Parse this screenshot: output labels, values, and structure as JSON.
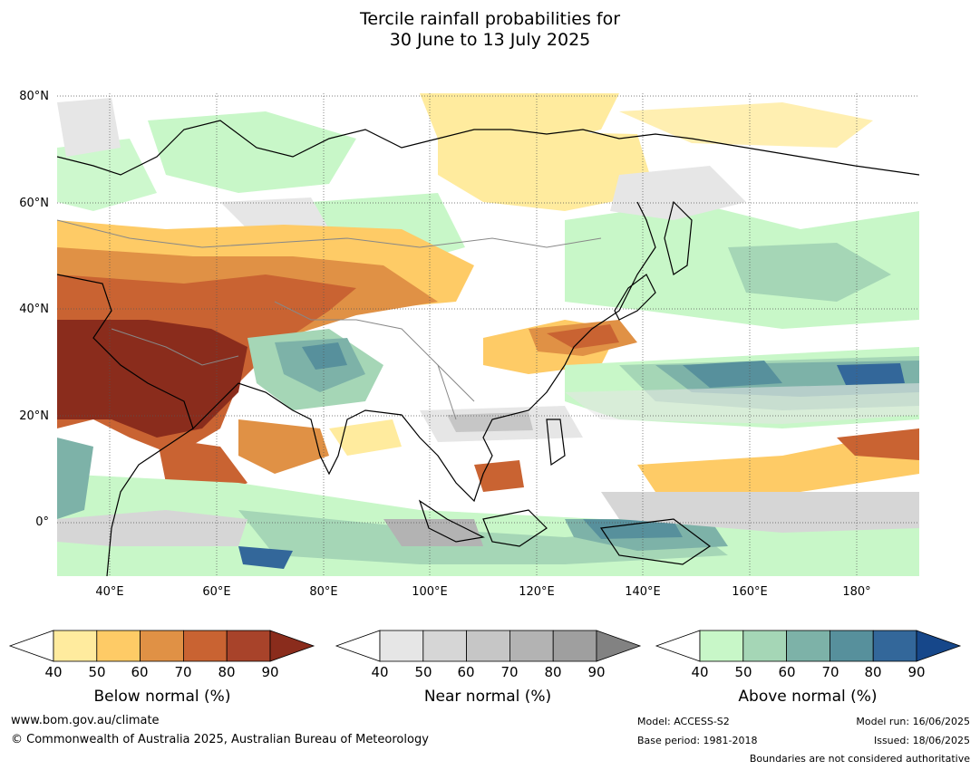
{
  "title_line1": "Tercile rainfall probabilities for",
  "title_line2": "30 June to 13 July 2025",
  "lat_labels": [
    "80°N",
    "60°N",
    "40°N",
    "20°N",
    "0°"
  ],
  "lon_labels": [
    "40°E",
    "60°E",
    "80°E",
    "100°E",
    "120°E",
    "140°E",
    "160°E",
    "180°"
  ],
  "colorbars": [
    {
      "label": "Below normal (%)",
      "ticks": [
        "40",
        "50",
        "60",
        "70",
        "80",
        "90"
      ],
      "colors": [
        "#ffffff",
        "#ffeb9e",
        "#fecb66",
        "#e09145",
        "#c96332",
        "#a8432a",
        "#8a2c1c"
      ]
    },
    {
      "label": "Near normal (%)",
      "ticks": [
        "40",
        "50",
        "60",
        "70",
        "80",
        "90"
      ],
      "colors": [
        "#ffffff",
        "#e6e6e6",
        "#d6d6d6",
        "#c6c6c6",
        "#b3b3b3",
        "#9f9f9f",
        "#828282"
      ]
    },
    {
      "label": "Above normal (%)",
      "ticks": [
        "40",
        "50",
        "60",
        "70",
        "80",
        "90"
      ],
      "colors": [
        "#ffffff",
        "#c8f7c8",
        "#a5d6b6",
        "#7db2a8",
        "#57909c",
        "#33679a",
        "#16478a"
      ]
    }
  ],
  "footer": {
    "website": "www.bom.gov.au/climate",
    "copyright": "© Commonwealth of Australia 2025, Australian Bureau of Meteorology",
    "model": "Model: ACCESS-S2",
    "base_period": "Base period: 1981-2018",
    "model_run": "Model run: 16/06/2025",
    "issued": "Issued: 18/06/2025",
    "disclaimer": "Boundaries are not considered authoritative"
  }
}
